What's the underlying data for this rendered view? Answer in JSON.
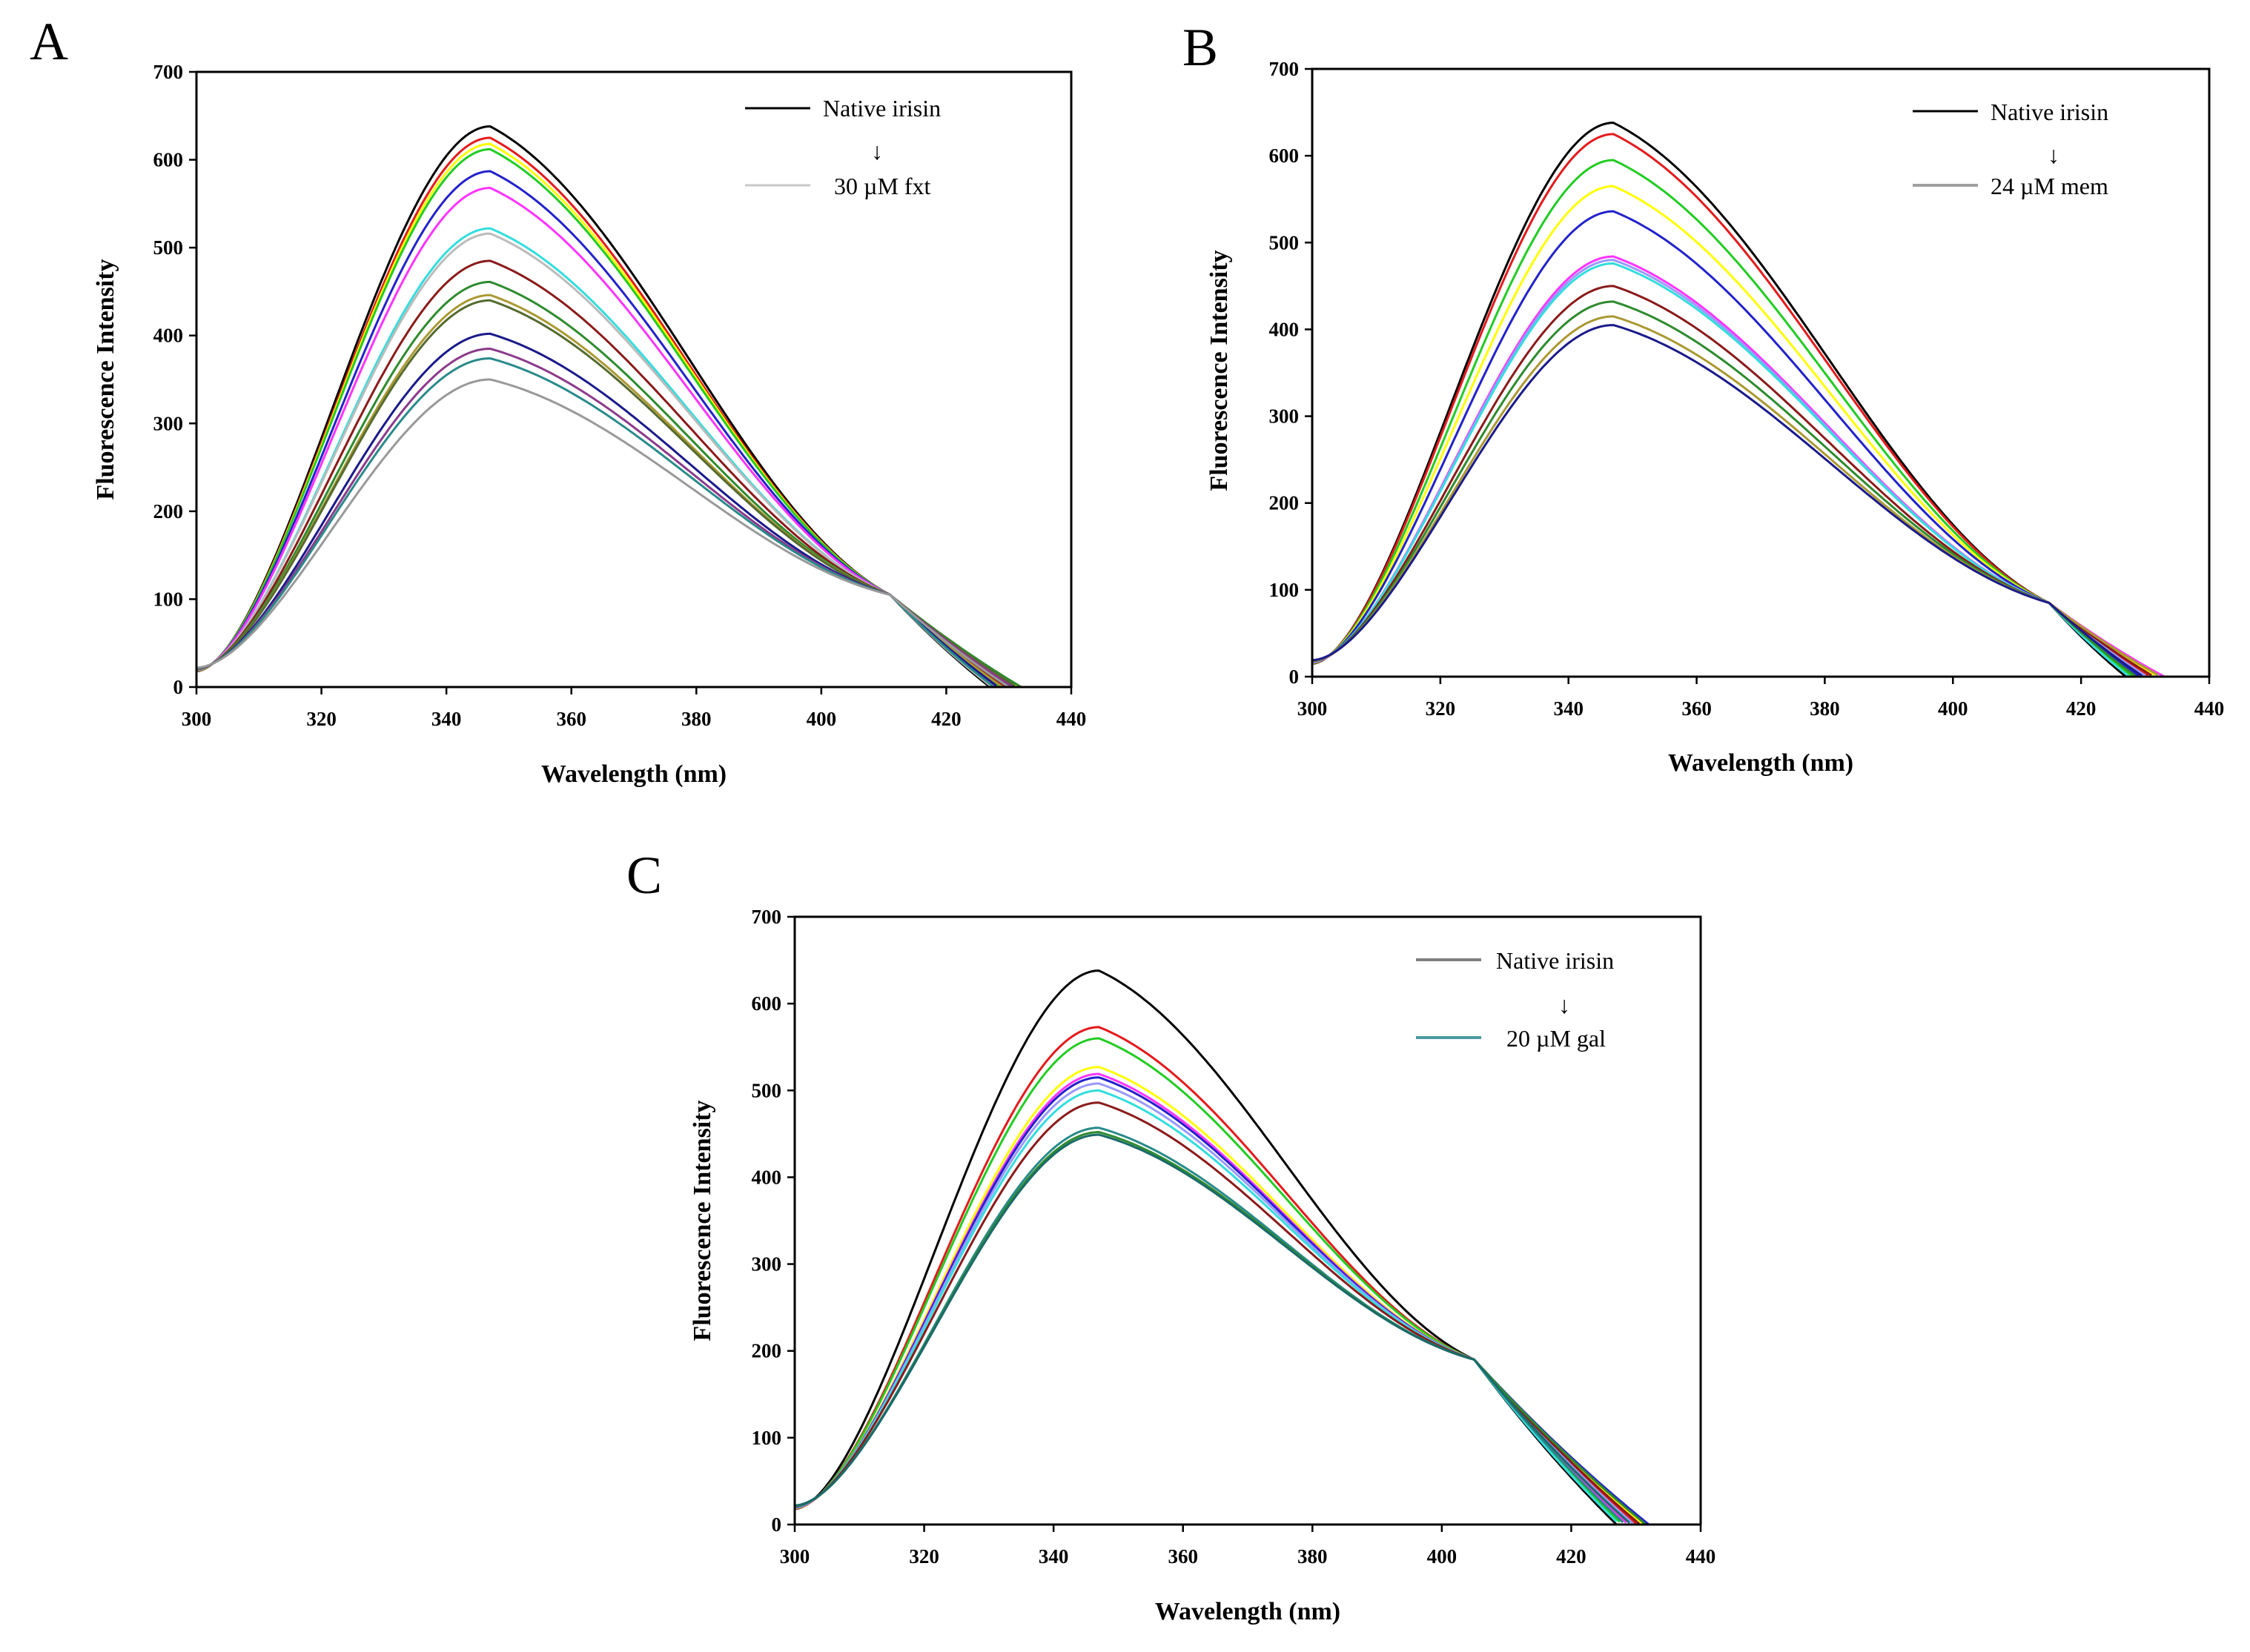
{
  "chart_data": [
    {
      "type": "line",
      "panel": "A",
      "xlabel": "Wavelength (nm)",
      "ylabel": "Fluorescence Intensity",
      "xlim": [
        300,
        440
      ],
      "ylim": [
        0,
        700
      ],
      "xticks": [
        300,
        320,
        340,
        360,
        380,
        400,
        420,
        440
      ],
      "yticks": [
        0,
        100,
        200,
        300,
        400,
        500,
        600,
        700
      ],
      "grid": false,
      "legend": {
        "start": "Native irisin",
        "end": "30 µM fxt",
        "position": "top-right",
        "arrow": "↓",
        "start_color": "#000000",
        "end_color": "#c8c8c8"
      },
      "curve_model": {
        "start_wavelength": 300,
        "start_intensity": 18,
        "cross_wavelength": 411,
        "cross_intensity": 105,
        "peak_wavelength": 347,
        "end_wavelength_range": [
          427,
          432
        ]
      },
      "series": [
        {
          "name": "Native irisin",
          "color": "#000000",
          "peak": 638
        },
        {
          "name": "",
          "color": "#e41a1c",
          "peak": 625
        },
        {
          "name": "",
          "color": "#ffff00",
          "peak": 618
        },
        {
          "name": "",
          "color": "#22cc22",
          "peak": 612
        },
        {
          "name": "",
          "color": "#2222cc",
          "peak": 587
        },
        {
          "name": "",
          "color": "#ff33ff",
          "peak": 568
        },
        {
          "name": "",
          "color": "#33dddd",
          "peak": 522
        },
        {
          "name": "",
          "color": "#bbbbbb",
          "peak": 516
        },
        {
          "name": "",
          "color": "#8b1a1a",
          "peak": 485
        },
        {
          "name": "",
          "color": "#2e8b2e",
          "peak": 461
        },
        {
          "name": "",
          "color": "#aa9933",
          "peak": 446
        },
        {
          "name": "",
          "color": "#556b2f",
          "peak": 440
        },
        {
          "name": "",
          "color": "#1a1a8b",
          "peak": 402
        },
        {
          "name": "",
          "color": "#8b3a8b",
          "peak": 385
        },
        {
          "name": "",
          "color": "#2a8a8a",
          "peak": 374
        },
        {
          "name": "30 µM fxt",
          "color": "#999999",
          "peak": 350
        }
      ]
    },
    {
      "type": "line",
      "panel": "B",
      "xlabel": "Wavelength (nm)",
      "ylabel": "Fluorescence Intensity",
      "xlim": [
        300,
        440
      ],
      "ylim": [
        0,
        700
      ],
      "xticks": [
        300,
        320,
        340,
        360,
        380,
        400,
        420,
        440
      ],
      "yticks": [
        0,
        100,
        200,
        300,
        400,
        500,
        600,
        700
      ],
      "grid": false,
      "legend": {
        "start": "Native irisin",
        "end": "24 µM mem",
        "position": "top-right",
        "arrow": "↓",
        "start_color": "#000000",
        "end_color": "#a0a0a0"
      },
      "curve_model": {
        "start_wavelength": 300,
        "start_intensity": 15,
        "cross_wavelength": 415,
        "cross_intensity": 85,
        "peak_wavelength": 347,
        "end_wavelength_range": [
          427,
          433
        ]
      },
      "series": [
        {
          "name": "Native irisin",
          "color": "#000000",
          "peak": 638
        },
        {
          "name": "",
          "color": "#e41a1c",
          "peak": 625
        },
        {
          "name": "",
          "color": "#22cc22",
          "peak": 595
        },
        {
          "name": "",
          "color": "#ffff00",
          "peak": 565
        },
        {
          "name": "",
          "color": "#2222cc",
          "peak": 536
        },
        {
          "name": "",
          "color": "#ff33ff",
          "peak": 484
        },
        {
          "name": "",
          "color": "#9999ff",
          "peak": 480
        },
        {
          "name": "",
          "color": "#33dddd",
          "peak": 476
        },
        {
          "name": "",
          "color": "#8b1a1a",
          "peak": 450
        },
        {
          "name": "",
          "color": "#2e8b2e",
          "peak": 432
        },
        {
          "name": "",
          "color": "#aa9933",
          "peak": 415
        },
        {
          "name": "24 µM mem",
          "color": "#1a1a8b",
          "peak": 405
        }
      ]
    },
    {
      "type": "line",
      "panel": "C",
      "xlabel": "Wavelength (nm)",
      "ylabel": "Fluorescence Intensity",
      "xlim": [
        300,
        440
      ],
      "ylim": [
        0,
        700
      ],
      "xticks": [
        300,
        320,
        340,
        360,
        380,
        400,
        420,
        440
      ],
      "yticks": [
        0,
        100,
        200,
        300,
        400,
        500,
        600,
        700
      ],
      "grid": false,
      "legend": {
        "start": "Native irisin",
        "end": "20 µM gal",
        "position": "top-right",
        "arrow": "↓",
        "start_color": "#808080",
        "end_color": "#4a9aa0"
      },
      "curve_model": {
        "start_wavelength": 300,
        "start_intensity": 18,
        "cross_wavelength": 405,
        "cross_intensity": 190,
        "peak_wavelength": 347,
        "end_wavelength_range": [
          427,
          432
        ]
      },
      "series": [
        {
          "name": "Native irisin",
          "color": "#000000",
          "peak": 638
        },
        {
          "name": "",
          "color": "#e41a1c",
          "peak": 573
        },
        {
          "name": "",
          "color": "#22cc22",
          "peak": 560
        },
        {
          "name": "",
          "color": "#ffff00",
          "peak": 527
        },
        {
          "name": "",
          "color": "#ff33ff",
          "peak": 519
        },
        {
          "name": "",
          "color": "#2222cc",
          "peak": 515
        },
        {
          "name": "",
          "color": "#9999ff",
          "peak": 508
        },
        {
          "name": "",
          "color": "#33dddd",
          "peak": 500
        },
        {
          "name": "",
          "color": "#8b1a1a",
          "peak": 486
        },
        {
          "name": "",
          "color": "#2a8a8a",
          "peak": 457
        },
        {
          "name": "",
          "color": "#2e8b2e",
          "peak": 452
        },
        {
          "name": "20 µM gal",
          "color": "#1a6a6a",
          "peak": 449
        }
      ]
    }
  ]
}
